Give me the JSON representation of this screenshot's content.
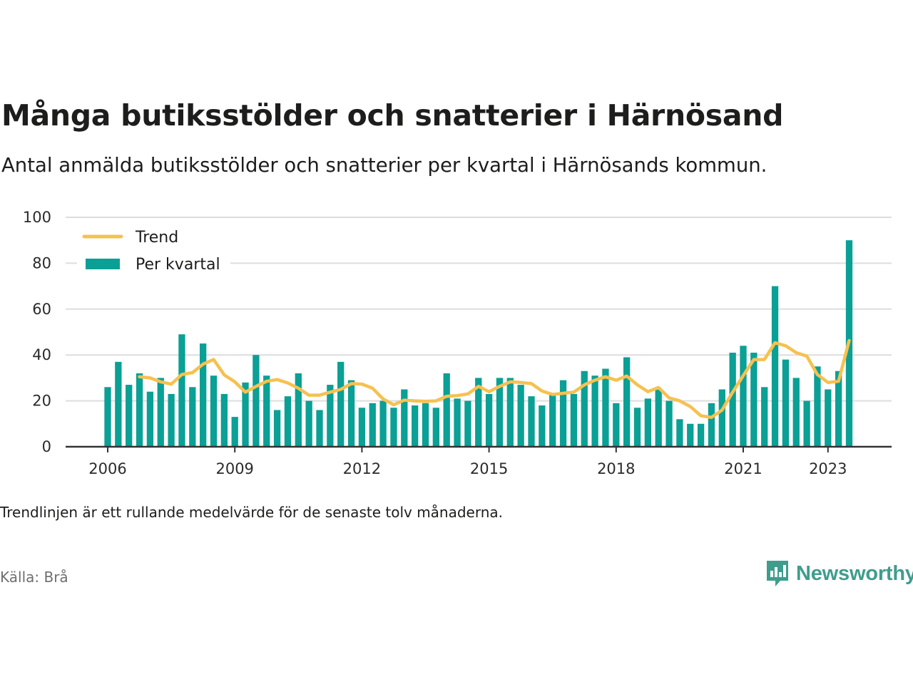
{
  "title": "Många butiksstölder och snatterier i Härnösand",
  "subtitle": "Antal anmälda butiksstölder och snatterier per kvartal i Härnösands kommun.",
  "note": "Trendlinjen är ett rullande medelvärde för de senaste tolv månaderna.",
  "source": "Källa: Brå",
  "brand": {
    "name": "Newsworthy",
    "icon": "newsworthy-logo-icon",
    "color": "#3f9d8c"
  },
  "colors": {
    "bars": "#0aa095",
    "trend": "#f6c14f",
    "grid": "#dddddd",
    "axis": "#333333"
  },
  "chart_data": {
    "type": "bar",
    "x_start": {
      "year": 2006,
      "quarter": 1
    },
    "ylim": [
      0,
      100
    ],
    "yticks": [
      0,
      20,
      40,
      60,
      80,
      100
    ],
    "xticks": [
      {
        "label": "2006",
        "index": 0
      },
      {
        "label": "2009",
        "index": 12
      },
      {
        "label": "2012",
        "index": 24
      },
      {
        "label": "2015",
        "index": 36
      },
      {
        "label": "2018",
        "index": 48
      },
      {
        "label": "2021",
        "index": 60
      },
      {
        "label": "2023",
        "index": 68
      }
    ],
    "grid": true,
    "legend_position": "top-left",
    "series": [
      {
        "name": "Per kvartal",
        "type": "bar",
        "values": [
          26,
          37,
          27,
          32,
          24,
          30,
          23,
          49,
          26,
          45,
          31,
          23,
          13,
          28,
          40,
          31,
          16,
          22,
          32,
          20,
          16,
          27,
          37,
          29,
          17,
          19,
          20,
          17,
          25,
          18,
          19,
          17,
          32,
          21,
          20,
          30,
          23,
          30,
          30,
          27,
          22,
          18,
          23,
          29,
          23,
          33,
          31,
          34,
          19,
          39,
          17,
          21,
          25,
          20,
          12,
          10,
          10,
          19,
          25,
          41,
          44,
          41,
          26,
          70,
          38,
          30,
          20,
          35,
          25,
          33,
          90
        ]
      },
      {
        "name": "Trend",
        "type": "line",
        "values": [
          null,
          null,
          null,
          30.5,
          30,
          28.3,
          27.3,
          31.5,
          32.3,
          36,
          38,
          31.3,
          28.3,
          23.8,
          26.3,
          28.5,
          29.3,
          27.8,
          25.5,
          22.5,
          22.5,
          23.8,
          25.0,
          27.5,
          27.3,
          25.5,
          20.8,
          18.3,
          20.3,
          20.0,
          19.8,
          20.0,
          22.0,
          22.3,
          23.0,
          26.3,
          24.0,
          26.3,
          28.3,
          28.0,
          27.5,
          24.3,
          22.8,
          23.3,
          23.8,
          27.0,
          29.0,
          30.5,
          29.0,
          30.8,
          27.0,
          24.0,
          25.8,
          21.3,
          20.0,
          17.5,
          13.5,
          12.8,
          16.0,
          23.8,
          31.0,
          38.0,
          38.0,
          45.3,
          44.0,
          41.0,
          39.5,
          31.5,
          28.0,
          28.5,
          46.3
        ]
      }
    ]
  }
}
